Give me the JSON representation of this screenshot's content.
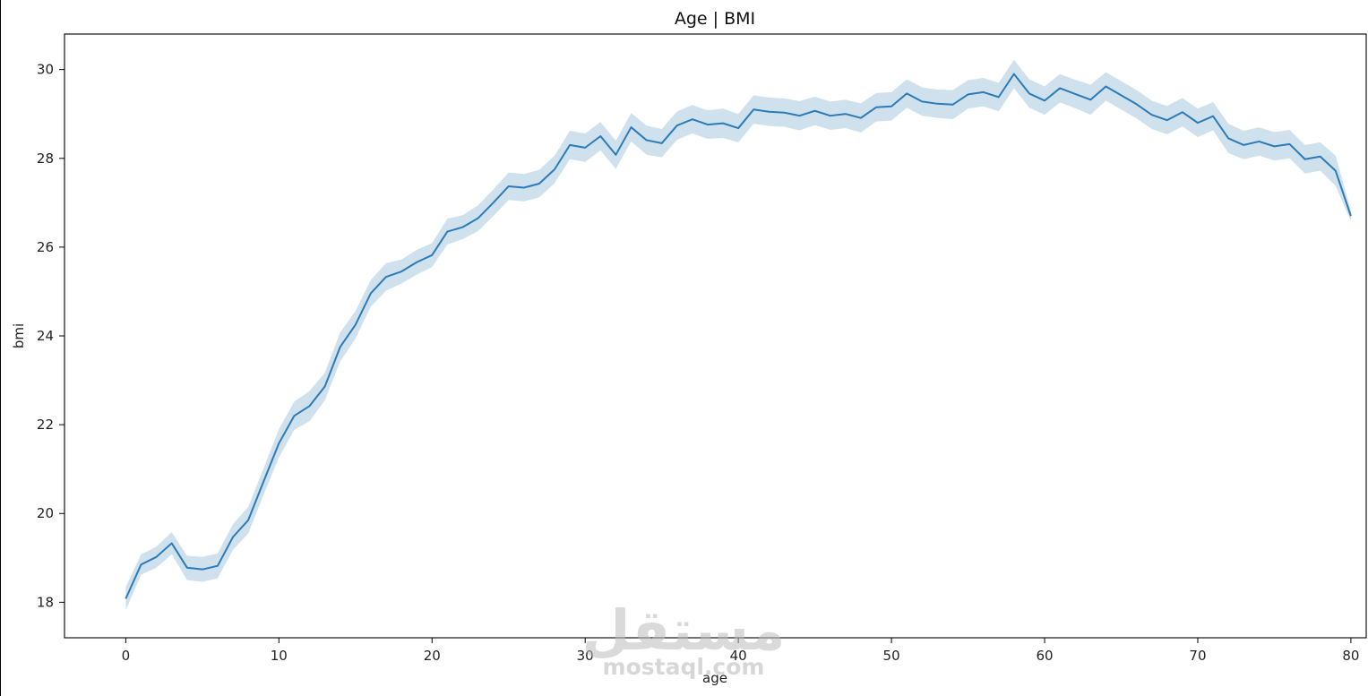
{
  "chart_data": {
    "type": "line",
    "title": "Age  |  BMI",
    "xlabel": "age",
    "ylabel": "bmi",
    "xlim": [
      -4,
      81
    ],
    "ylim": [
      17.2,
      30.8
    ],
    "xticks": [
      0,
      10,
      20,
      30,
      40,
      50,
      60,
      70,
      80
    ],
    "yticks": [
      18,
      20,
      22,
      24,
      26,
      28,
      30
    ],
    "grid": false,
    "legend": "none",
    "line_color": "#2a7bb8",
    "band_color": "#aac8e0",
    "series": [
      {
        "x": [
          0,
          1,
          2,
          3,
          4,
          5,
          6,
          7,
          8,
          9,
          10,
          11,
          12,
          13,
          14,
          15,
          16,
          17,
          18,
          19,
          20,
          21,
          22,
          23,
          24,
          25,
          26,
          27,
          28,
          29,
          30,
          31,
          32,
          33,
          34,
          35,
          36,
          37,
          38,
          39,
          40,
          41,
          42,
          43,
          44,
          45,
          46,
          47,
          48,
          49,
          50,
          51,
          52,
          53,
          54,
          55,
          56,
          57,
          58,
          59,
          60,
          61,
          62,
          63,
          64,
          65,
          66,
          67,
          68,
          69,
          70,
          71,
          72,
          73,
          74,
          75,
          76,
          77,
          78,
          79,
          80
        ],
        "y": [
          18.08,
          18.85,
          19.02,
          19.33,
          18.78,
          18.74,
          18.82,
          19.47,
          19.85,
          20.72,
          21.58,
          22.2,
          22.42,
          22.86,
          23.75,
          24.25,
          24.96,
          25.33,
          25.45,
          25.66,
          25.82,
          26.35,
          26.45,
          26.65,
          27.0,
          27.37,
          27.34,
          27.43,
          27.75,
          28.3,
          28.24,
          28.5,
          28.08,
          28.7,
          28.41,
          28.34,
          28.74,
          28.88,
          28.76,
          28.79,
          28.68,
          29.1,
          29.05,
          29.03,
          28.96,
          29.07,
          28.96,
          29.0,
          28.91,
          29.15,
          29.17,
          29.46,
          29.28,
          29.23,
          29.21,
          29.44,
          29.49,
          29.38,
          29.9,
          29.46,
          29.3,
          29.58,
          29.45,
          29.32,
          29.62,
          29.42,
          29.22,
          28.98,
          28.86,
          29.04,
          28.8,
          28.95,
          28.45,
          28.3,
          28.38,
          28.27,
          28.32,
          27.98,
          28.04,
          27.72,
          26.7
        ],
        "ci_low": [
          17.82,
          18.62,
          18.78,
          19.08,
          18.5,
          18.46,
          18.54,
          19.18,
          19.55,
          20.42,
          21.26,
          21.88,
          22.08,
          22.55,
          23.42,
          23.94,
          24.66,
          25.02,
          25.18,
          25.38,
          25.55,
          26.06,
          26.18,
          26.36,
          26.7,
          27.06,
          27.03,
          27.12,
          27.44,
          27.98,
          27.92,
          28.18,
          27.76,
          28.38,
          28.08,
          28.02,
          28.42,
          28.56,
          28.44,
          28.46,
          28.36,
          28.78,
          28.73,
          28.71,
          28.63,
          28.75,
          28.64,
          28.68,
          28.58,
          28.83,
          28.85,
          29.14,
          28.96,
          28.91,
          28.88,
          29.12,
          29.17,
          29.06,
          29.58,
          29.14,
          28.98,
          29.26,
          29.13,
          28.98,
          29.3,
          29.1,
          28.9,
          28.66,
          28.54,
          28.72,
          28.48,
          28.63,
          28.12,
          27.98,
          28.06,
          27.95,
          28.0,
          27.66,
          27.72,
          27.38,
          26.58
        ],
        "ci_high": [
          18.34,
          19.08,
          19.25,
          19.58,
          19.05,
          19.02,
          19.1,
          19.76,
          20.15,
          21.02,
          21.9,
          22.52,
          22.76,
          23.17,
          24.08,
          24.56,
          25.26,
          25.64,
          25.72,
          25.94,
          26.09,
          26.64,
          26.72,
          26.94,
          27.3,
          27.68,
          27.65,
          27.74,
          28.06,
          28.62,
          28.56,
          28.82,
          28.4,
          29.02,
          28.74,
          28.66,
          29.06,
          29.2,
          29.08,
          29.12,
          29.0,
          29.42,
          29.37,
          29.35,
          29.29,
          29.39,
          29.28,
          29.32,
          29.24,
          29.47,
          29.49,
          29.78,
          29.6,
          29.55,
          29.54,
          29.76,
          29.81,
          29.7,
          30.22,
          29.78,
          29.62,
          29.9,
          29.77,
          29.66,
          29.94,
          29.74,
          29.54,
          29.3,
          29.18,
          29.36,
          29.12,
          29.27,
          28.78,
          28.62,
          28.7,
          28.59,
          28.64,
          28.3,
          28.36,
          28.06,
          26.82
        ]
      }
    ]
  },
  "watermark": {
    "arabic": "مستقل",
    "latin": "mostaql.com"
  }
}
